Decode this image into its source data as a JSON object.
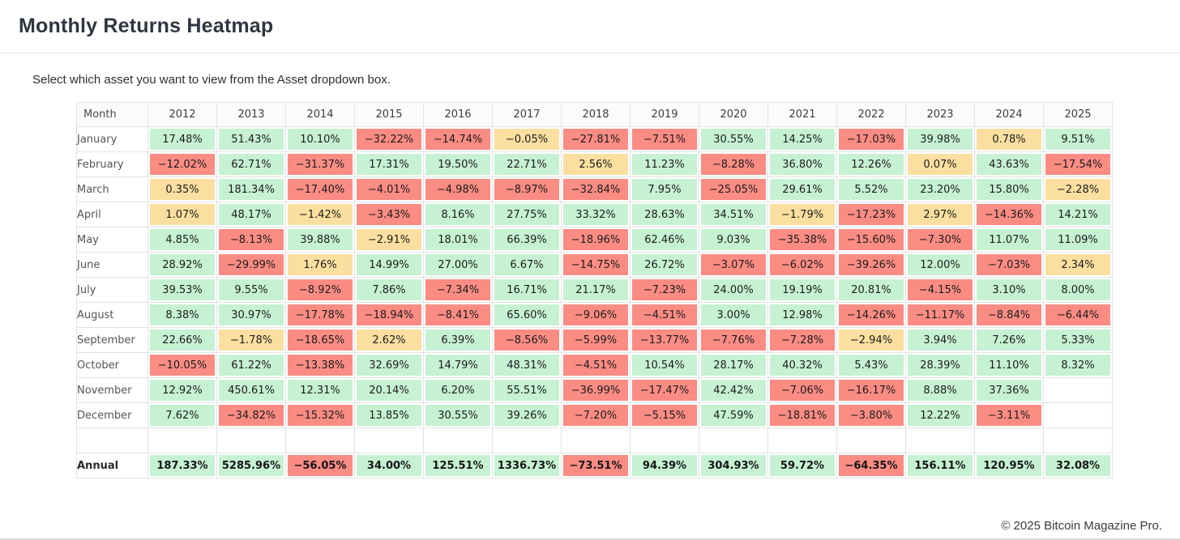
{
  "header": {
    "title": "Monthly Returns Heatmap"
  },
  "subtitle": "Select which asset you want to view from the Asset dropdown box.",
  "footer": {
    "copyright": "© 2025 Bitcoin Magazine Pro."
  },
  "colors": {
    "positive": "#c6f1d2",
    "negative": "#fa8c84",
    "neutral": "#fbdfa0",
    "neutral_threshold": 3
  },
  "chart_data": {
    "type": "heatmap",
    "title": "Monthly Returns Heatmap",
    "value_format": "percent, two decimals",
    "color_rule": "value >= 3 green, value <= -3 red, otherwise yellow, blank cell if null",
    "row_header": "Month",
    "columns": [
      "2012",
      "2013",
      "2014",
      "2015",
      "2016",
      "2017",
      "2018",
      "2019",
      "2020",
      "2021",
      "2022",
      "2023",
      "2024",
      "2025"
    ],
    "rows": [
      {
        "label": "January",
        "values": [
          17.48,
          51.43,
          10.1,
          -32.22,
          -14.74,
          -0.05,
          -27.81,
          -7.51,
          30.55,
          14.25,
          -17.03,
          39.98,
          0.78,
          9.51
        ]
      },
      {
        "label": "February",
        "values": [
          -12.02,
          62.71,
          -31.37,
          17.31,
          19.5,
          22.71,
          2.56,
          11.23,
          -8.28,
          36.8,
          12.26,
          0.07,
          43.63,
          -17.54
        ]
      },
      {
        "label": "March",
        "values": [
          0.35,
          181.34,
          -17.4,
          -4.01,
          -4.98,
          -8.97,
          -32.84,
          7.95,
          -25.05,
          29.61,
          5.52,
          23.2,
          15.8,
          -2.28
        ]
      },
      {
        "label": "April",
        "values": [
          1.07,
          48.17,
          -1.42,
          -3.43,
          8.16,
          27.75,
          33.32,
          28.63,
          34.51,
          -1.79,
          -17.23,
          2.97,
          -14.36,
          14.21
        ]
      },
      {
        "label": "May",
        "values": [
          4.85,
          -8.13,
          39.88,
          -2.91,
          18.01,
          66.39,
          -18.96,
          62.46,
          9.03,
          -35.38,
          -15.6,
          -7.3,
          11.07,
          11.09
        ]
      },
      {
        "label": "June",
        "values": [
          28.92,
          -29.99,
          1.76,
          14.99,
          27.0,
          6.67,
          -14.75,
          26.72,
          -3.07,
          -6.02,
          -39.26,
          12.0,
          -7.03,
          2.34
        ]
      },
      {
        "label": "July",
        "values": [
          39.53,
          9.55,
          -8.92,
          7.86,
          -7.34,
          16.71,
          21.17,
          -7.23,
          24.0,
          19.19,
          20.81,
          -4.15,
          3.1,
          8.0
        ]
      },
      {
        "label": "August",
        "values": [
          8.38,
          30.97,
          -17.78,
          -18.94,
          -8.41,
          65.6,
          -9.06,
          -4.51,
          3.0,
          12.98,
          -14.26,
          -11.17,
          -8.84,
          -6.44
        ]
      },
      {
        "label": "September",
        "values": [
          22.66,
          -1.78,
          -18.65,
          2.62,
          6.39,
          -8.56,
          -5.99,
          -13.77,
          -7.76,
          -7.28,
          -2.94,
          3.94,
          7.26,
          5.33
        ]
      },
      {
        "label": "October",
        "values": [
          -10.05,
          61.22,
          -13.38,
          32.69,
          14.79,
          48.31,
          -4.51,
          10.54,
          28.17,
          40.32,
          5.43,
          28.39,
          11.1,
          8.32
        ]
      },
      {
        "label": "November",
        "values": [
          12.92,
          450.61,
          12.31,
          20.14,
          6.2,
          55.51,
          -36.99,
          -17.47,
          42.42,
          -7.06,
          -16.17,
          8.88,
          37.36,
          null
        ]
      },
      {
        "label": "December",
        "values": [
          7.62,
          -34.82,
          -15.32,
          13.85,
          30.55,
          39.26,
          -7.2,
          -5.15,
          47.59,
          -18.81,
          -3.8,
          12.22,
          -3.11,
          null
        ]
      }
    ],
    "spacer_row": true,
    "annual_row": {
      "label": "Annual",
      "values": [
        187.33,
        5285.96,
        -56.05,
        34.0,
        125.51,
        1336.73,
        -73.51,
        94.39,
        304.93,
        59.72,
        -64.35,
        156.11,
        120.95,
        32.08
      ]
    }
  }
}
